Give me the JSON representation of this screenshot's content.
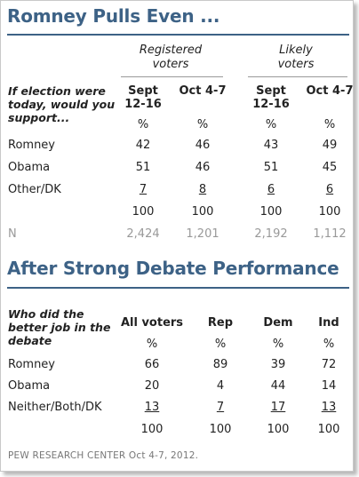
{
  "chart_data": [
    {
      "type": "table",
      "title": "Romney Pulls Even ...",
      "question": "If election were today, would you support...",
      "groups": [
        "Registered voters",
        "Likely voters"
      ],
      "columns": [
        "Sept 12-16",
        "Oct 4-7",
        "Sept 12-16",
        "Oct 4-7"
      ],
      "unit_row": [
        "%",
        "%",
        "%",
        "%"
      ],
      "rows": [
        {
          "label": "Romney",
          "values": [
            "42",
            "46",
            "43",
            "49"
          ]
        },
        {
          "label": "Obama",
          "values": [
            "51",
            "46",
            "51",
            "45"
          ]
        },
        {
          "label": "Other/DK",
          "values": [
            "7",
            "8",
            "6",
            "6"
          ]
        }
      ],
      "total_row": [
        "100",
        "100",
        "100",
        "100"
      ],
      "n_label": "N",
      "n_row": [
        "2,424",
        "1,201",
        "2,192",
        "1,112"
      ]
    },
    {
      "type": "table",
      "title": "After Strong Debate Performance",
      "question": "Who did the better job in the debate",
      "columns": [
        "All voters",
        "Rep",
        "Dem",
        "Ind"
      ],
      "unit_row": [
        "%",
        "%",
        "%",
        "%"
      ],
      "rows": [
        {
          "label": "Romney",
          "values": [
            "66",
            "89",
            "39",
            "72"
          ]
        },
        {
          "label": "Obama",
          "values": [
            "20",
            "4",
            "44",
            "14"
          ]
        },
        {
          "label": "Neither/Both/DK",
          "values": [
            "13",
            "7",
            "17",
            "13"
          ]
        }
      ],
      "total_row": [
        "100",
        "100",
        "100",
        "100"
      ]
    }
  ],
  "source": "PEW RESEARCH CENTER Oct 4-7, 2012."
}
